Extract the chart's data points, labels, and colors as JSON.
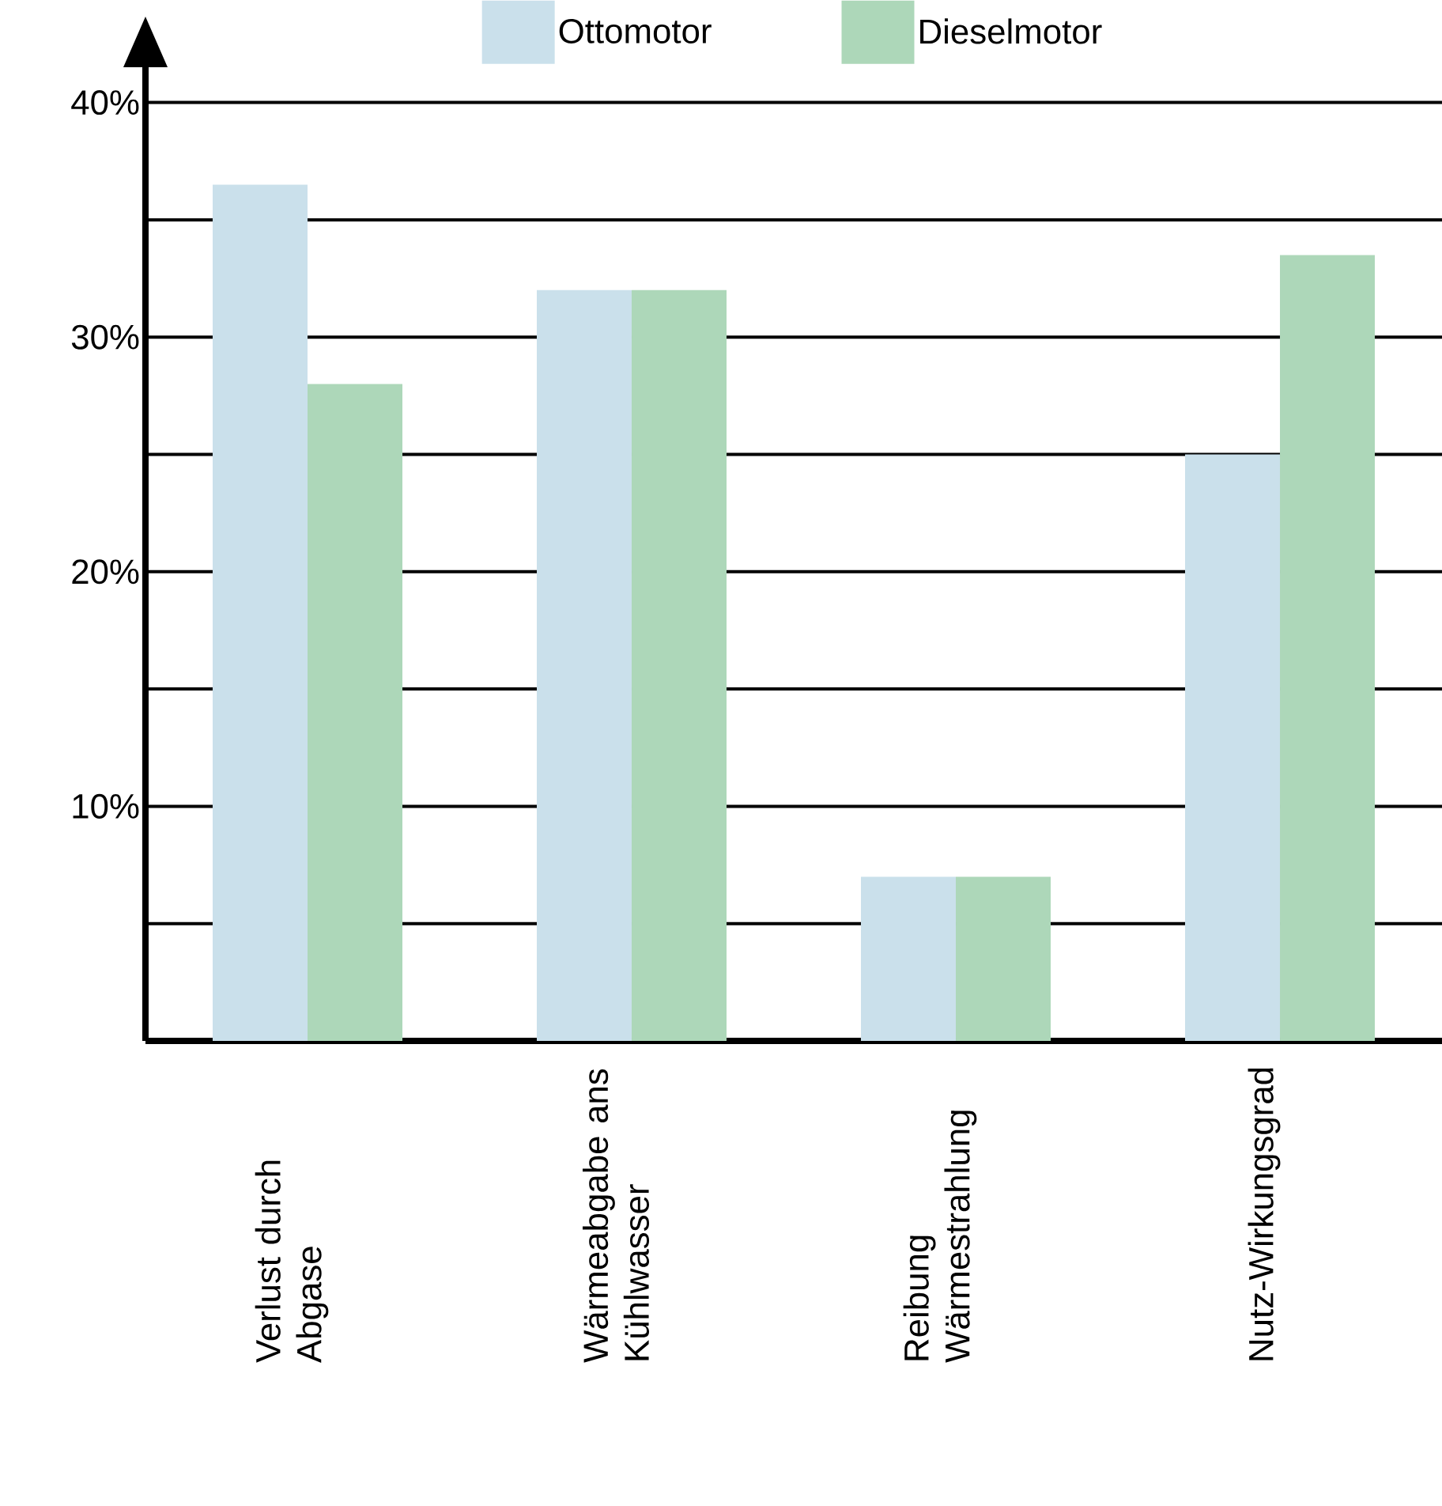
{
  "chart_data": {
    "type": "bar",
    "categories": [
      "Verlust durch Abgase",
      "Wärmeabgabe ans Kühlwasser",
      "Reibung Wärmestrahlung",
      "Nutz-Wirkungsgrad"
    ],
    "series": [
      {
        "name": "Ottomotor",
        "color": "#cae0eb",
        "values": [
          36.5,
          32,
          7,
          25
        ]
      },
      {
        "name": "Dieselmotor",
        "color": "#add7b9",
        "values": [
          28,
          32,
          7,
          33.5
        ]
      }
    ],
    "ylim": [
      0,
      41.5
    ],
    "yticks": [
      {
        "value": 0,
        "label": null
      },
      {
        "value": 5,
        "label": null
      },
      {
        "value": 10,
        "label": "10%"
      },
      {
        "value": 15,
        "label": null
      },
      {
        "value": 20,
        "label": "20%"
      },
      {
        "value": 25,
        "label": null
      },
      {
        "value": 30,
        "label": "30%"
      },
      {
        "value": 35,
        "label": null
      },
      {
        "value": 40,
        "label": "40%"
      }
    ],
    "grid": "y",
    "legend": "top"
  }
}
